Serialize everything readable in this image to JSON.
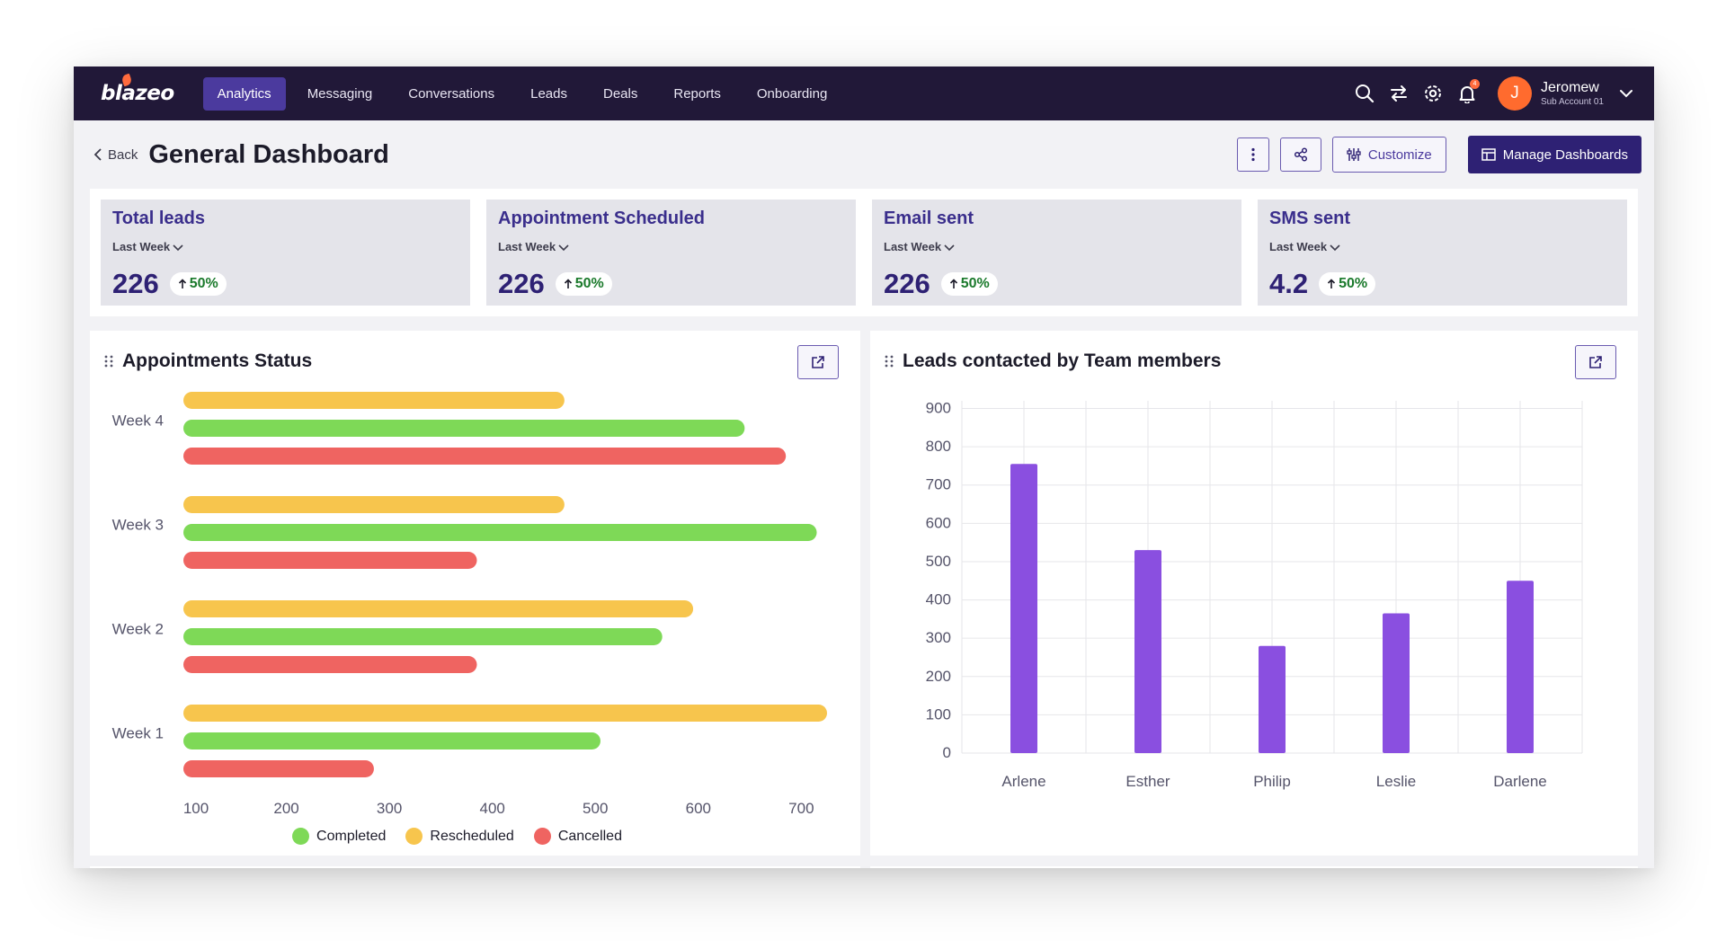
{
  "app": {
    "logo": "blazeo"
  },
  "nav": {
    "items": [
      {
        "label": "Analytics",
        "active": true
      },
      {
        "label": "Messaging",
        "active": false
      },
      {
        "label": "Conversations",
        "active": false
      },
      {
        "label": "Leads",
        "active": false
      },
      {
        "label": "Deals",
        "active": false
      },
      {
        "label": "Reports",
        "active": false
      },
      {
        "label": "Onboarding",
        "active": false
      }
    ],
    "notification_count": "4",
    "user": {
      "initial": "J",
      "name": "Jeromew",
      "sub": "Sub Account 01"
    }
  },
  "header": {
    "back_label": "Back",
    "title": "General Dashboard",
    "customize_label": "Customize",
    "manage_label": "Manage Dashboards"
  },
  "stats": [
    {
      "title": "Total leads",
      "period": "Last Week",
      "value": "226",
      "change": "50%"
    },
    {
      "title": "Appointment Scheduled",
      "period": "Last Week",
      "value": "226",
      "change": "50%"
    },
    {
      "title": "Email sent",
      "period": "Last Week",
      "value": "226",
      "change": "50%"
    },
    {
      "title": "SMS sent",
      "period": "Last Week",
      "value": "4.2",
      "change": "50%"
    }
  ],
  "colors": {
    "completed": "#7ed957",
    "rescheduled": "#f7c54d",
    "cancelled": "#ef6461",
    "team_bar": "#8a4fe0",
    "accent": "#2e2174",
    "nav_bg": "#211838"
  },
  "chart_data": [
    {
      "type": "bar",
      "orientation": "horizontal",
      "title": "Appointments Status",
      "categories": [
        "Week 4",
        "Week 3",
        "Week 2",
        "Week 1"
      ],
      "series": [
        {
          "name": "Rescheduled",
          "values": [
            470,
            470,
            595,
            725
          ]
        },
        {
          "name": "Completed",
          "values": [
            645,
            715,
            565,
            505
          ]
        },
        {
          "name": "Cancelled",
          "values": [
            685,
            385,
            385,
            285
          ]
        }
      ],
      "xticks": [
        100,
        200,
        300,
        400,
        500,
        600,
        700
      ],
      "xlim": [
        100,
        725
      ],
      "legend_order": [
        "Completed",
        "Rescheduled",
        "Cancelled"
      ],
      "legend_position": "bottom"
    },
    {
      "type": "bar",
      "title": "Leads contacted by Team members",
      "categories": [
        "Arlene",
        "Esther",
        "Philip",
        "Leslie",
        "Darlene"
      ],
      "values": [
        755,
        530,
        280,
        365,
        450
      ],
      "yticks": [
        0,
        100,
        200,
        300,
        400,
        500,
        600,
        700,
        800,
        900
      ],
      "ylim": [
        0,
        920
      ],
      "grid": true
    }
  ]
}
